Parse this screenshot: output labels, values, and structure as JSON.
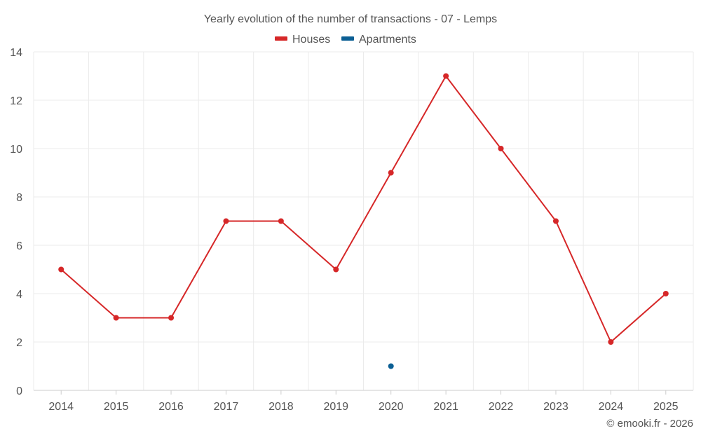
{
  "chart_data": {
    "type": "line",
    "title": "Yearly evolution of the number of transactions - 07 - Lemps",
    "categories": [
      "2014",
      "2015",
      "2016",
      "2017",
      "2018",
      "2019",
      "2020",
      "2021",
      "2022",
      "2023",
      "2024",
      "2025"
    ],
    "series": [
      {
        "name": "Houses",
        "color": "#d62728",
        "values": [
          5,
          3,
          3,
          7,
          7,
          5,
          9,
          13,
          10,
          7,
          2,
          4
        ]
      },
      {
        "name": "Apartments",
        "color": "#0b5f94",
        "values": [
          null,
          null,
          null,
          null,
          null,
          null,
          1,
          null,
          null,
          null,
          null,
          null
        ]
      }
    ],
    "ylim": [
      0,
      14
    ],
    "yticks": [
      "0",
      "2",
      "4",
      "6",
      "8",
      "10",
      "12",
      "14"
    ],
    "legend_position": "top-center",
    "grid": true
  },
  "credit": "© emooki.fr - 2026"
}
